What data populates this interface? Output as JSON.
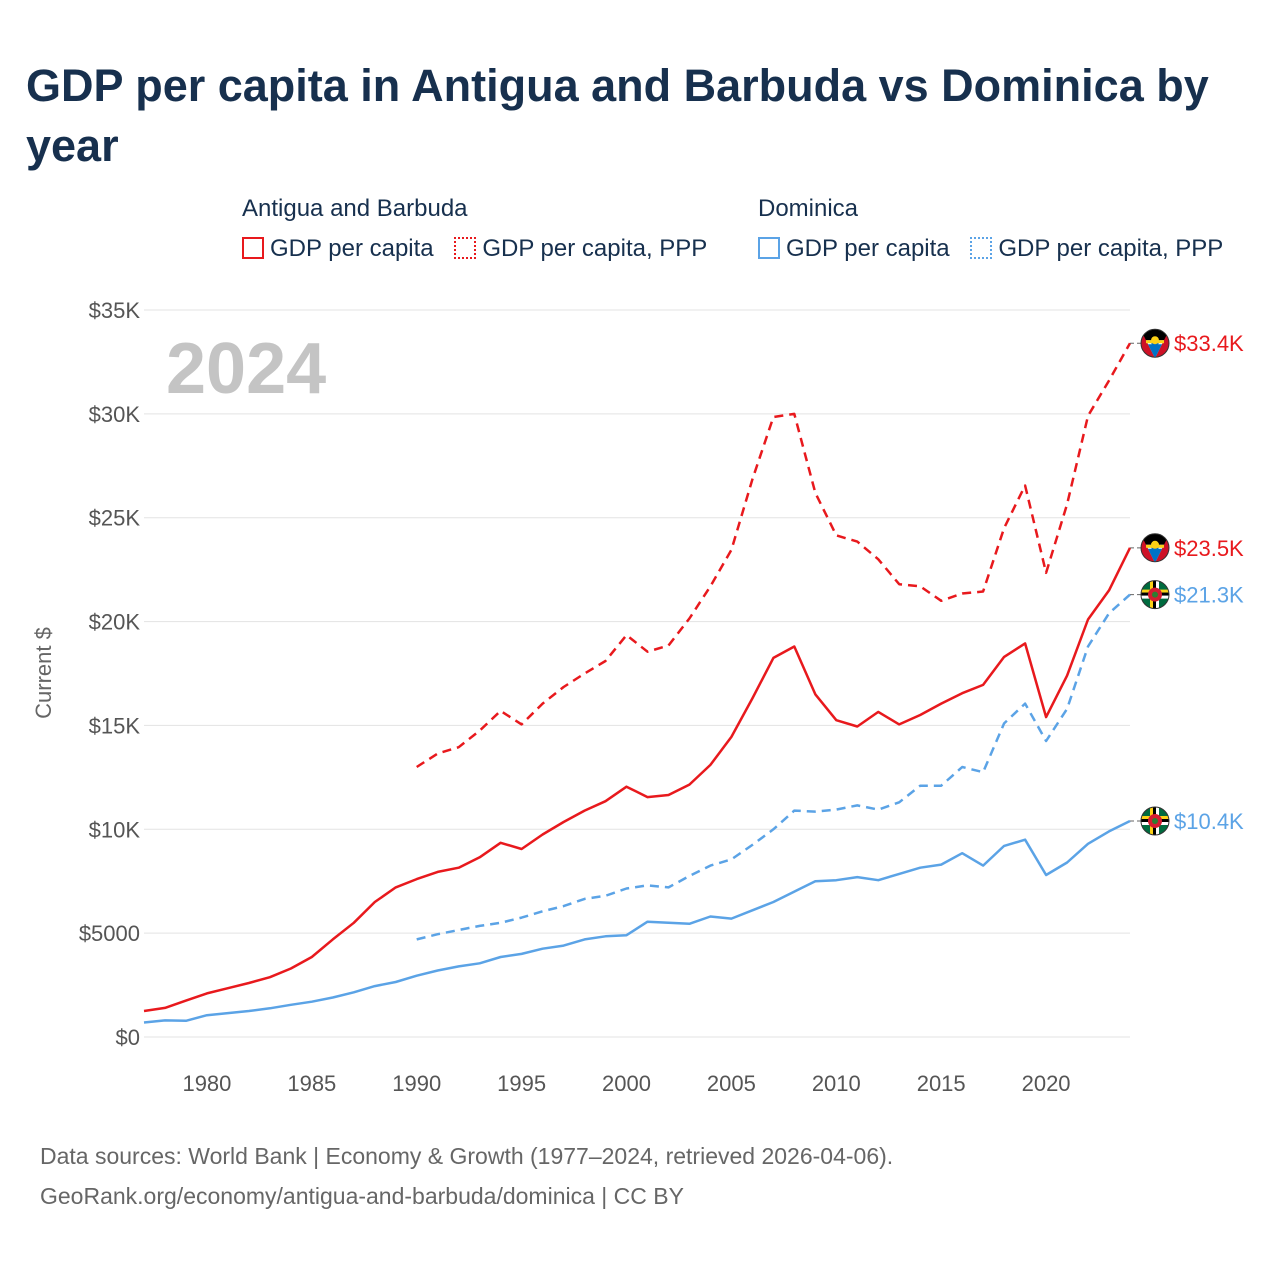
{
  "title": "GDP per capita in Antigua and Barbuda vs Dominica by year",
  "legend": {
    "groups": [
      {
        "name": "Antigua and Barbuda",
        "color": "#e8191d",
        "items": [
          {
            "label": "GDP per capita",
            "style": "solid"
          },
          {
            "label": "GDP per capita, PPP",
            "style": "dotted"
          }
        ]
      },
      {
        "name": "Dominica",
        "color": "#5ba3e6",
        "items": [
          {
            "label": "GDP per capita",
            "style": "solid"
          },
          {
            "label": "GDP per capita, PPP",
            "style": "dotted"
          }
        ]
      }
    ]
  },
  "source": {
    "line1": "Data sources: World Bank | Economy & Growth (1977–2024, retrieved 2026-04-06).",
    "line2": "GeoRank.org/economy/antigua-and-barbuda/dominica | CC BY"
  },
  "chart_data": {
    "type": "line",
    "year_label": "2024",
    "ylabel": "Current $",
    "xlim": [
      1977,
      2024
    ],
    "ylim": [
      0,
      35000
    ],
    "yticks": [
      0,
      5000,
      10000,
      15000,
      20000,
      25000,
      30000,
      35000
    ],
    "ytick_labels": [
      "$0",
      "$5000",
      "$10K",
      "$15K",
      "$20K",
      "$25K",
      "$30K",
      "$35K"
    ],
    "xticks": [
      1980,
      1985,
      1990,
      1995,
      2000,
      2005,
      2010,
      2015,
      2020
    ],
    "xtick_labels": [
      "1980",
      "1985",
      "1990",
      "1995",
      "2000",
      "2005",
      "2010",
      "2015",
      "2020"
    ],
    "series": [
      {
        "name": "Antigua and Barbuda GDP per capita",
        "color": "#e8191d",
        "dash": "solid",
        "flag": "antigua-and-barbuda-flag",
        "end_label": "$23.5K",
        "x": [
          1977,
          1978,
          1979,
          1980,
          1981,
          1982,
          1983,
          1984,
          1985,
          1986,
          1987,
          1988,
          1989,
          1990,
          1991,
          1992,
          1993,
          1994,
          1995,
          1996,
          1997,
          1998,
          1999,
          2000,
          2001,
          2002,
          2003,
          2004,
          2005,
          2006,
          2007,
          2008,
          2009,
          2010,
          2011,
          2012,
          2013,
          2014,
          2015,
          2016,
          2017,
          2018,
          2019,
          2020,
          2021,
          2022,
          2023,
          2024
        ],
        "values": [
          1250,
          1400,
          1750,
          2100,
          2350,
          2600,
          2880,
          3300,
          3850,
          4700,
          5500,
          6500,
          7200,
          7600,
          7950,
          8150,
          8650,
          9350,
          9050,
          9750,
          10350,
          10900,
          11350,
          12050,
          11550,
          11650,
          12150,
          13100,
          14450,
          16300,
          18250,
          18800,
          16500,
          15250,
          14950,
          15650,
          15050,
          15500,
          16050,
          16550,
          16950,
          18300,
          18950,
          15400,
          17400,
          20100,
          21500,
          23550
        ]
      },
      {
        "name": "Antigua and Barbuda GDP per capita, PPP",
        "color": "#e8191d",
        "dash": "dashed",
        "flag": "antigua-and-barbuda-flag",
        "end_label": "$33.4K",
        "x": [
          1990,
          1991,
          1992,
          1993,
          1994,
          1995,
          1996,
          1997,
          1998,
          1999,
          2000,
          2001,
          2002,
          2003,
          2004,
          2005,
          2006,
          2007,
          2008,
          2009,
          2010,
          2011,
          2012,
          2013,
          2014,
          2015,
          2016,
          2017,
          2018,
          2019,
          2020,
          2021,
          2022,
          2023,
          2024
        ],
        "values": [
          13000,
          13650,
          13950,
          14750,
          15700,
          15050,
          16050,
          16850,
          17500,
          18100,
          19350,
          18550,
          18850,
          20150,
          21700,
          23450,
          26850,
          29850,
          30000,
          26200,
          24150,
          23850,
          23000,
          21800,
          21700,
          21000,
          21350,
          21450,
          24500,
          26550,
          22350,
          25650,
          29900,
          31600,
          33400
        ]
      },
      {
        "name": "Dominica GDP per capita",
        "color": "#5ba3e6",
        "dash": "solid",
        "flag": "dominica-flag",
        "end_label": "$10.4K",
        "x": [
          1977,
          1978,
          1979,
          1980,
          1981,
          1982,
          1983,
          1984,
          1985,
          1986,
          1987,
          1988,
          1989,
          1990,
          1991,
          1992,
          1993,
          1994,
          1995,
          1996,
          1997,
          1998,
          1999,
          2000,
          2001,
          2002,
          2003,
          2004,
          2005,
          2006,
          2007,
          2008,
          2009,
          2010,
          2011,
          2012,
          2013,
          2014,
          2015,
          2016,
          2017,
          2018,
          2019,
          2020,
          2021,
          2022,
          2023,
          2024
        ],
        "values": [
          700,
          800,
          780,
          1050,
          1150,
          1250,
          1380,
          1550,
          1700,
          1900,
          2150,
          2450,
          2650,
          2950,
          3200,
          3400,
          3550,
          3850,
          4000,
          4250,
          4400,
          4700,
          4850,
          4900,
          5550,
          5500,
          5450,
          5800,
          5700,
          6100,
          6500,
          7000,
          7500,
          7550,
          7700,
          7550,
          7850,
          8150,
          8300,
          8850,
          8250,
          9200,
          9500,
          7800,
          8400,
          9300,
          9900,
          10400
        ]
      },
      {
        "name": "Dominica GDP per capita, PPP",
        "color": "#5ba3e6",
        "dash": "dashed",
        "flag": "dominica-flag",
        "end_label": "$21.3K",
        "x": [
          1990,
          1991,
          1992,
          1993,
          1994,
          1995,
          1996,
          1997,
          1998,
          1999,
          2000,
          2001,
          2002,
          2003,
          2004,
          2005,
          2006,
          2007,
          2008,
          2009,
          2010,
          2011,
          2012,
          2013,
          2014,
          2015,
          2016,
          2017,
          2018,
          2019,
          2020,
          2021,
          2022,
          2023,
          2024
        ],
        "values": [
          4700,
          4950,
          5150,
          5350,
          5500,
          5750,
          6050,
          6300,
          6650,
          6800,
          7150,
          7300,
          7200,
          7750,
          8250,
          8550,
          9250,
          10000,
          10900,
          10850,
          10950,
          11150,
          10950,
          11300,
          12100,
          12100,
          13000,
          12750,
          15100,
          16050,
          14250,
          15800,
          18800,
          20400,
          21300
        ]
      }
    ]
  }
}
